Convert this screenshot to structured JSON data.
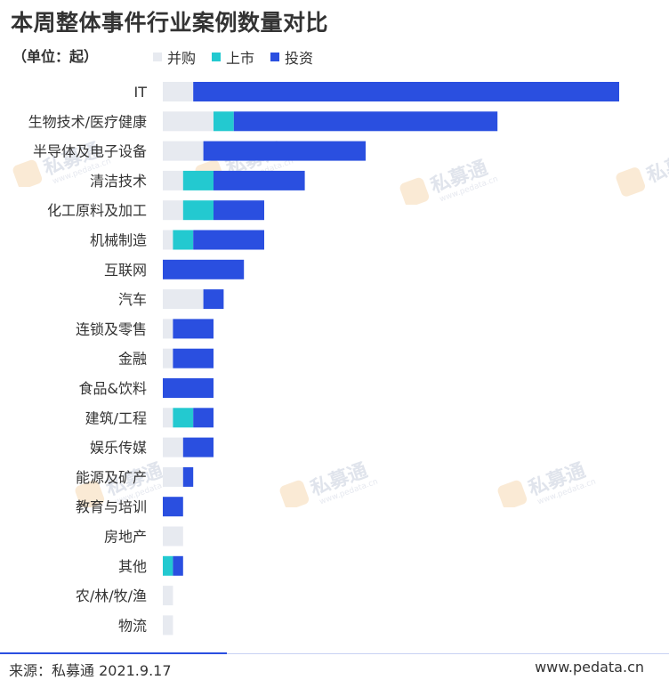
{
  "title": "本周整体事件行业案例数量对比",
  "unit": "（单位：起）",
  "source": "来源：私募通 2021.9.17",
  "website": "www.pedata.cn",
  "watermark": {
    "text": "私募通",
    "sub": "www.pedata.cn"
  },
  "colors": {
    "series": [
      "#e7eaf0",
      "#23c9d0",
      "#2a4fe0"
    ],
    "text": "#333333"
  },
  "chart_data": {
    "type": "bar",
    "orientation": "horizontal",
    "stacked": true,
    "xlim": [
      0,
      45
    ],
    "categories": [
      "IT",
      "生物技术/医疗健康",
      "半导体及电子设备",
      "清洁技术",
      "化工原料及加工",
      "机械制造",
      "互联网",
      "汽车",
      "连锁及零售",
      "金融",
      "食品&饮料",
      "建筑/工程",
      "娱乐传媒",
      "能源及矿产",
      "教育与培训",
      "房地产",
      "其他",
      "农/林/牧/渔",
      "物流"
    ],
    "series": [
      {
        "name": "并购",
        "values": [
          3,
          5,
          4,
          2,
          2,
          1,
          0,
          4,
          1,
          1,
          0,
          1,
          2,
          2,
          0,
          2,
          0,
          1,
          1
        ]
      },
      {
        "name": "上市",
        "values": [
          0,
          2,
          0,
          3,
          3,
          2,
          0,
          0,
          0,
          0,
          0,
          2,
          0,
          0,
          0,
          0,
          1,
          0,
          0
        ]
      },
      {
        "name": "投资",
        "values": [
          42,
          26,
          16,
          9,
          5,
          7,
          8,
          2,
          4,
          4,
          5,
          2,
          3,
          1,
          2,
          0,
          1,
          0,
          0
        ]
      }
    ],
    "legend_position": "top",
    "grid": false
  }
}
